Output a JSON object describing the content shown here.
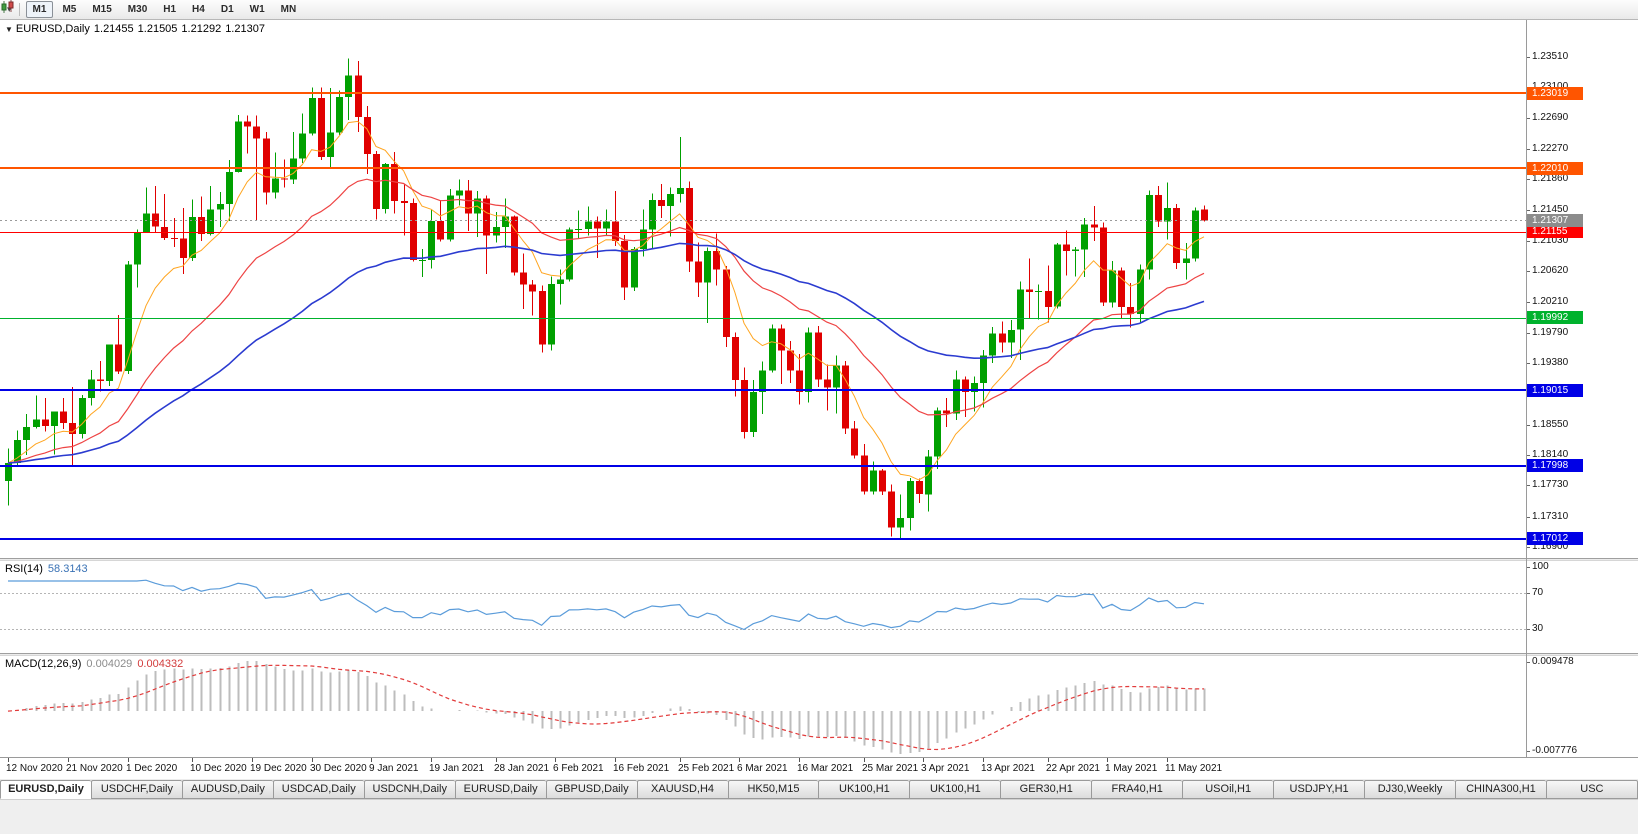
{
  "icons": {
    "collapse": "▼",
    "chart_type_dropdown": "▾"
  },
  "toolbar": {
    "timeframes": [
      {
        "label": "M1",
        "active": true
      },
      {
        "label": "M5",
        "active": false
      },
      {
        "label": "M15",
        "active": false
      },
      {
        "label": "M30",
        "active": false
      },
      {
        "label": "H1",
        "active": false
      },
      {
        "label": "H4",
        "active": false
      },
      {
        "label": "D1",
        "active": false
      },
      {
        "label": "W1",
        "active": false
      },
      {
        "label": "MN",
        "active": false
      }
    ]
  },
  "chart_header": {
    "symbol": "EURUSD,Daily",
    "open": "1.21455",
    "high": "1.21505",
    "low": "1.21292",
    "close": "1.21307"
  },
  "rsi_panel": {
    "label": "RSI(14)",
    "value": "58.3143"
  },
  "macd_panel": {
    "label": "MACD(12,26,9)",
    "value_main": "0.004029",
    "value_signal": "0.004332"
  },
  "colors": {
    "candle_up": "#00A000",
    "candle_down": "#E00000",
    "background": "#FFFFFF",
    "axis_text": "#111111"
  },
  "chart_data": {
    "type": "candlestick",
    "symbol": "EURUSD",
    "timeframe": "Daily",
    "title": "EURUSD,Daily",
    "current_ohlc": {
      "open": 1.21455,
      "high": 1.21505,
      "low": 1.21292,
      "close": 1.21307
    },
    "price_axis": {
      "min": 1.1675,
      "max": 1.2401,
      "tick_labels": [
        "1.23510",
        "1.23100",
        "1.22690",
        "1.22270",
        "1.21860",
        "1.21450",
        "1.21030",
        "1.20620",
        "1.20210",
        "1.19790",
        "1.19380",
        "1.18960",
        "1.18550",
        "1.18140",
        "1.17730",
        "1.17310",
        "1.16900"
      ]
    },
    "current_price_line": {
      "price": 1.21307,
      "label": "1.21307",
      "line_color": "#9a9a9a",
      "badge_color": "#8c8c8c"
    },
    "horizontal_lines": [
      {
        "price": 1.23019,
        "label": "1.23019",
        "color": "#FF5500",
        "width": 2
      },
      {
        "price": 1.2201,
        "label": "1.22010",
        "color": "#FF5500",
        "width": 2
      },
      {
        "price": 1.21155,
        "label": "1.21155",
        "color": "#FF0000",
        "width": 1
      },
      {
        "price": 1.19992,
        "label": "1.19992",
        "color": "#00B22D",
        "width": 1
      },
      {
        "price": 1.19015,
        "label": "1.19015",
        "color": "#0000E6",
        "width": 2
      },
      {
        "price": 1.17998,
        "label": "1.17998",
        "color": "#0000E6",
        "width": 2
      },
      {
        "price": 1.17012,
        "label": "1.17012",
        "color": "#0000E6",
        "width": 2
      }
    ],
    "moving_averages": [
      {
        "name": "ma-fast",
        "period": 8,
        "color": "#FFA520",
        "width": 1
      },
      {
        "name": "ma-medium",
        "period": 24,
        "color": "#EE4444",
        "width": 1.2
      },
      {
        "name": "ma-slow",
        "period": 55,
        "color": "#2B3BD0",
        "width": 1.6
      }
    ],
    "indicators": [
      {
        "name": "RSI",
        "period": 14,
        "display_label": "RSI(14)",
        "current_value": 58.3143,
        "color": "#5B9CDA",
        "levels_dashed": [
          70,
          30
        ],
        "axis_labels": [
          "100",
          "70",
          "30"
        ],
        "range": [
          0,
          100
        ]
      },
      {
        "name": "MACD",
        "fast": 12,
        "slow": 26,
        "signal": 9,
        "display_label": "MACD(12,26,9)",
        "current_main": 0.004029,
        "current_signal": 0.004332,
        "histogram_color": "#BDBDBD",
        "signal_color": "#E23B3B",
        "axis_max": 0.009478,
        "axis_min": -0.007776,
        "axis_labels": [
          "0.009478",
          "-0.007776"
        ]
      }
    ],
    "date_ticks": [
      {
        "label": "12 Nov 2020",
        "i": 0
      },
      {
        "label": "21 Nov 2020",
        "i": 6.5
      },
      {
        "label": "1 Dec 2020",
        "i": 13
      },
      {
        "label": "10 Dec 2020",
        "i": 20
      },
      {
        "label": "19 Dec 2020",
        "i": 26.5
      },
      {
        "label": "30 Dec 2020",
        "i": 33
      },
      {
        "label": "9 Jan 2021",
        "i": 39.5
      },
      {
        "label": "19 Jan 2021",
        "i": 46
      },
      {
        "label": "28 Jan 2021",
        "i": 53
      },
      {
        "label": "6 Feb 2021",
        "i": 59.5
      },
      {
        "label": "16 Feb 2021",
        "i": 66
      },
      {
        "label": "25 Feb 2021",
        "i": 73
      },
      {
        "label": "6 Mar 2021",
        "i": 79.5
      },
      {
        "label": "16 Mar 2021",
        "i": 86
      },
      {
        "label": "25 Mar 2021",
        "i": 93
      },
      {
        "label": "3 Apr 2021",
        "i": 99.5
      },
      {
        "label": "13 Apr 2021",
        "i": 106
      },
      {
        "label": "22 Apr 2021",
        "i": 113
      },
      {
        "label": "1 May 2021",
        "i": 119.5
      },
      {
        "label": "11 May 2021",
        "i": 126
      }
    ],
    "ohlc": [
      [
        1.1779,
        1.1823,
        1.1746,
        1.1803
      ],
      [
        1.1803,
        1.1847,
        1.1799,
        1.1834
      ],
      [
        1.1834,
        1.1869,
        1.1814,
        1.1852
      ],
      [
        1.1852,
        1.1894,
        1.185,
        1.1862
      ],
      [
        1.1862,
        1.1891,
        1.1846,
        1.1853
      ],
      [
        1.1853,
        1.1873,
        1.1815,
        1.1873
      ],
      [
        1.1873,
        1.1891,
        1.1849,
        1.1857
      ],
      [
        1.1857,
        1.1906,
        1.18,
        1.1842
      ],
      [
        1.1842,
        1.1895,
        1.1836,
        1.1891
      ],
      [
        1.1891,
        1.1929,
        1.1881,
        1.1916
      ],
      [
        1.1916,
        1.1941,
        1.19,
        1.1914
      ],
      [
        1.1914,
        1.1963,
        1.1907,
        1.1963
      ],
      [
        1.1963,
        1.2003,
        1.1923,
        1.1927
      ],
      [
        1.1927,
        1.2076,
        1.1923,
        1.2071
      ],
      [
        1.2071,
        1.2118,
        1.204,
        1.2115
      ],
      [
        1.2115,
        1.2175,
        1.2114,
        1.214
      ],
      [
        1.214,
        1.2177,
        1.2115,
        1.2122
      ],
      [
        1.2122,
        1.2166,
        1.2104,
        1.2107
      ],
      [
        1.2107,
        1.2134,
        1.2095,
        1.2106
      ],
      [
        1.2106,
        1.2147,
        1.2058,
        1.208
      ],
      [
        1.208,
        1.2159,
        1.2076,
        1.2135
      ],
      [
        1.2135,
        1.2163,
        1.2103,
        1.2112
      ],
      [
        1.2112,
        1.2177,
        1.211,
        1.2145
      ],
      [
        1.2145,
        1.2169,
        1.2122,
        1.2153
      ],
      [
        1.2153,
        1.2212,
        1.213,
        1.2196
      ],
      [
        1.2196,
        1.2273,
        1.2195,
        1.2264
      ],
      [
        1.2264,
        1.2272,
        1.2221,
        1.2257
      ],
      [
        1.2257,
        1.2272,
        1.213,
        1.2241
      ],
      [
        1.2241,
        1.225,
        1.2152,
        1.2168
      ],
      [
        1.2168,
        1.2222,
        1.216,
        1.2187
      ],
      [
        1.2187,
        1.2213,
        1.2175,
        1.2186
      ],
      [
        1.2186,
        1.225,
        1.218,
        1.2214
      ],
      [
        1.2214,
        1.2275,
        1.2208,
        1.2248
      ],
      [
        1.2248,
        1.231,
        1.2245,
        1.2296
      ],
      [
        1.2296,
        1.231,
        1.2212,
        1.2216
      ],
      [
        1.2216,
        1.2309,
        1.22,
        1.2249
      ],
      [
        1.2249,
        1.2306,
        1.2246,
        1.2297
      ],
      [
        1.2297,
        1.2349,
        1.2266,
        1.2326
      ],
      [
        1.2326,
        1.2346,
        1.225,
        1.227
      ],
      [
        1.227,
        1.2285,
        1.2193,
        1.222
      ],
      [
        1.222,
        1.2224,
        1.2132,
        1.2146
      ],
      [
        1.2146,
        1.2208,
        1.214,
        1.2207
      ],
      [
        1.2207,
        1.2223,
        1.214,
        1.2157
      ],
      [
        1.2157,
        1.218,
        1.211,
        1.2154
      ],
      [
        1.2154,
        1.216,
        1.2075,
        1.2077
      ],
      [
        1.2077,
        1.2092,
        1.2054,
        1.2077
      ],
      [
        1.2077,
        1.2145,
        1.2066,
        1.213
      ],
      [
        1.213,
        1.2158,
        1.2102,
        1.2105
      ],
      [
        1.2105,
        1.2173,
        1.2102,
        1.2164
      ],
      [
        1.2164,
        1.2186,
        1.2151,
        1.2171
      ],
      [
        1.2171,
        1.2185,
        1.2116,
        1.214
      ],
      [
        1.214,
        1.217,
        1.2108,
        1.216
      ],
      [
        1.216,
        1.2164,
        1.2058,
        1.211
      ],
      [
        1.211,
        1.2142,
        1.2101,
        1.2122
      ],
      [
        1.2122,
        1.216,
        1.2093,
        1.2136
      ],
      [
        1.2136,
        1.2137,
        1.2056,
        1.206
      ],
      [
        1.206,
        1.2086,
        1.2011,
        1.2044
      ],
      [
        1.2044,
        1.205,
        1.2002,
        1.2035
      ],
      [
        1.2035,
        1.2043,
        1.1952,
        1.1963
      ],
      [
        1.1963,
        1.2055,
        1.1955,
        1.2045
      ],
      [
        1.2045,
        1.2064,
        1.2017,
        1.2051
      ],
      [
        1.2051,
        1.2121,
        1.2048,
        1.2118
      ],
      [
        1.2118,
        1.2144,
        1.2106,
        1.2119
      ],
      [
        1.2119,
        1.2149,
        1.211,
        1.2129
      ],
      [
        1.2129,
        1.2136,
        1.208,
        1.212
      ],
      [
        1.212,
        1.2145,
        1.211,
        1.2129
      ],
      [
        1.2129,
        1.217,
        1.2096,
        1.2103
      ],
      [
        1.2103,
        1.2111,
        1.2023,
        1.204
      ],
      [
        1.204,
        1.2095,
        1.2035,
        1.2092
      ],
      [
        1.2092,
        1.2145,
        1.2082,
        1.2118
      ],
      [
        1.2118,
        1.2167,
        1.2091,
        1.2158
      ],
      [
        1.2158,
        1.218,
        1.2134,
        1.215
      ],
      [
        1.215,
        1.2175,
        1.2109,
        1.2166
      ],
      [
        1.2166,
        1.2243,
        1.2155,
        1.2174
      ],
      [
        1.2174,
        1.2183,
        1.2061,
        1.2075
      ],
      [
        1.2075,
        1.2101,
        1.2027,
        1.2047
      ],
      [
        1.2047,
        1.2094,
        1.1992,
        1.2089
      ],
      [
        1.2089,
        1.2113,
        1.2043,
        1.2064
      ],
      [
        1.2064,
        1.2069,
        1.196,
        1.1973
      ],
      [
        1.1973,
        1.1979,
        1.1893,
        1.1915
      ],
      [
        1.1915,
        1.1932,
        1.1836,
        1.1845
      ],
      [
        1.1845,
        1.1915,
        1.1838,
        1.1899
      ],
      [
        1.1899,
        1.194,
        1.1869,
        1.1928
      ],
      [
        1.1928,
        1.199,
        1.1925,
        1.1985
      ],
      [
        1.1985,
        1.199,
        1.191,
        1.1955
      ],
      [
        1.1955,
        1.1968,
        1.1911,
        1.1928
      ],
      [
        1.1928,
        1.195,
        1.1882,
        1.1899
      ],
      [
        1.1899,
        1.1986,
        1.1885,
        1.1979
      ],
      [
        1.1979,
        1.1988,
        1.1906,
        1.1916
      ],
      [
        1.1916,
        1.1936,
        1.1874,
        1.1905
      ],
      [
        1.1905,
        1.1948,
        1.187,
        1.1935
      ],
      [
        1.1935,
        1.1941,
        1.1842,
        1.185
      ],
      [
        1.185,
        1.186,
        1.1809,
        1.1813
      ],
      [
        1.1813,
        1.1829,
        1.1761,
        1.1765
      ],
      [
        1.1765,
        1.1805,
        1.1761,
        1.1793
      ],
      [
        1.1793,
        1.1795,
        1.176,
        1.1765
      ],
      [
        1.1765,
        1.1774,
        1.1704,
        1.1716
      ],
      [
        1.1716,
        1.1761,
        1.17,
        1.1729
      ],
      [
        1.1729,
        1.1783,
        1.1712,
        1.1779
      ],
      [
        1.1779,
        1.1782,
        1.1749,
        1.1761
      ],
      [
        1.1761,
        1.1821,
        1.1738,
        1.1812
      ],
      [
        1.1812,
        1.1878,
        1.1795,
        1.1874
      ],
      [
        1.1874,
        1.1891,
        1.1852,
        1.187
      ],
      [
        1.187,
        1.1928,
        1.1861,
        1.1916
      ],
      [
        1.1916,
        1.192,
        1.1865,
        1.1899
      ],
      [
        1.1899,
        1.192,
        1.1873,
        1.1911
      ],
      [
        1.1911,
        1.1956,
        1.1878,
        1.1948
      ],
      [
        1.1948,
        1.1987,
        1.1938,
        1.1978
      ],
      [
        1.1978,
        1.1994,
        1.1952,
        1.1966
      ],
      [
        1.1966,
        1.1996,
        1.1945,
        1.1983
      ],
      [
        1.1983,
        1.2048,
        1.1942,
        1.2037
      ],
      [
        1.2037,
        1.2079,
        1.1999,
        1.2034
      ],
      [
        1.2034,
        1.2044,
        1.1997,
        1.2035
      ],
      [
        1.2035,
        1.207,
        1.1993,
        1.2014
      ],
      [
        1.2014,
        1.21,
        1.2012,
        1.2098
      ],
      [
        1.2098,
        1.2117,
        1.2056,
        1.2089
      ],
      [
        1.2089,
        1.2095,
        1.2055,
        1.2091
      ],
      [
        1.2091,
        1.2134,
        1.2054,
        1.2125
      ],
      [
        1.2125,
        1.215,
        1.2103,
        1.2121
      ],
      [
        1.2121,
        1.2128,
        1.2015,
        1.202
      ],
      [
        1.202,
        1.2076,
        1.2013,
        1.2063
      ],
      [
        1.2063,
        1.2067,
        1.1999,
        1.2014
      ],
      [
        1.2014,
        1.2046,
        1.1986,
        1.2004
      ],
      [
        1.2004,
        1.2071,
        1.1993,
        1.2064
      ],
      [
        1.2064,
        1.2171,
        1.2051,
        1.2165
      ],
      [
        1.2165,
        1.2177,
        1.2122,
        1.2129
      ],
      [
        1.2129,
        1.2182,
        1.2105,
        1.2147
      ],
      [
        1.2147,
        1.2153,
        1.2065,
        1.2073
      ],
      [
        1.2073,
        1.21,
        1.2051,
        1.2079
      ],
      [
        1.2079,
        1.2148,
        1.2075,
        1.2144
      ],
      [
        1.21455,
        1.21505,
        1.21292,
        1.21307
      ]
    ]
  },
  "tabs": [
    {
      "label": "EURUSD,Daily",
      "active": true
    },
    {
      "label": "USDCHF,Daily",
      "active": false
    },
    {
      "label": "AUDUSD,Daily",
      "active": false
    },
    {
      "label": "USDCAD,Daily",
      "active": false
    },
    {
      "label": "USDCNH,Daily",
      "active": false
    },
    {
      "label": "EURUSD,Daily",
      "active": false
    },
    {
      "label": "GBPUSD,Daily",
      "active": false
    },
    {
      "label": "XAUUSD,H4",
      "active": false
    },
    {
      "label": "HK50,M15",
      "active": false
    },
    {
      "label": "UK100,H1",
      "active": false
    },
    {
      "label": "UK100,H1",
      "active": false
    },
    {
      "label": "GER30,H1",
      "active": false
    },
    {
      "label": "FRA40,H1",
      "active": false
    },
    {
      "label": "USOil,H1",
      "active": false
    },
    {
      "label": "USDJPY,H1",
      "active": false
    },
    {
      "label": "DJ30,Weekly",
      "active": false
    },
    {
      "label": "CHINA300,H1",
      "active": false
    },
    {
      "label": "USC",
      "active": false
    }
  ]
}
